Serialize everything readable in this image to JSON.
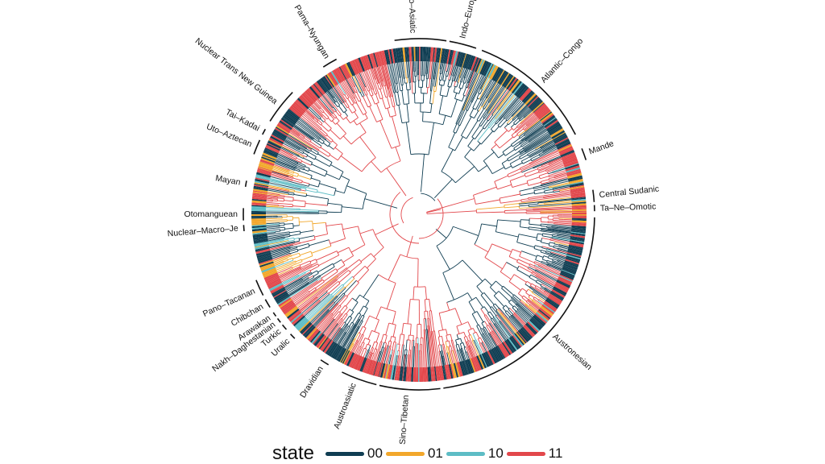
{
  "legend": {
    "title": "state",
    "items": [
      {
        "label": "00",
        "color": "#0f3d52"
      },
      {
        "label": "01",
        "color": "#f2a72b"
      },
      {
        "label": "10",
        "color": "#5dbdc5"
      },
      {
        "label": "11",
        "color": "#e2474b"
      }
    ]
  },
  "clades": [
    {
      "name": "Afro–Asiatic"
    },
    {
      "name": "Indo–European"
    },
    {
      "name": "Atlantic–Congo"
    },
    {
      "name": "Mande"
    },
    {
      "name": "Central Sudanic"
    },
    {
      "name": "Ta–Ne–Omotic"
    },
    {
      "name": "Austronesian"
    },
    {
      "name": "Sino–Tibetan"
    },
    {
      "name": "Austroasiatic"
    },
    {
      "name": "Dravidian"
    },
    {
      "name": "Uralic"
    },
    {
      "name": "Turkic"
    },
    {
      "name": "Nakh–Daghestanian"
    },
    {
      "name": "Arawakan"
    },
    {
      "name": "Chibchan"
    },
    {
      "name": "Pano–Tacanan"
    },
    {
      "name": "Nuclear–Macro–Je"
    },
    {
      "name": "Otomanguean"
    },
    {
      "name": "Mayan"
    },
    {
      "name": "Uto–Aztecan"
    },
    {
      "name": "Tai–Kadai"
    },
    {
      "name": "Nuclear Trans New Guinea"
    },
    {
      "name": "Pama–Nyungan"
    }
  ]
}
